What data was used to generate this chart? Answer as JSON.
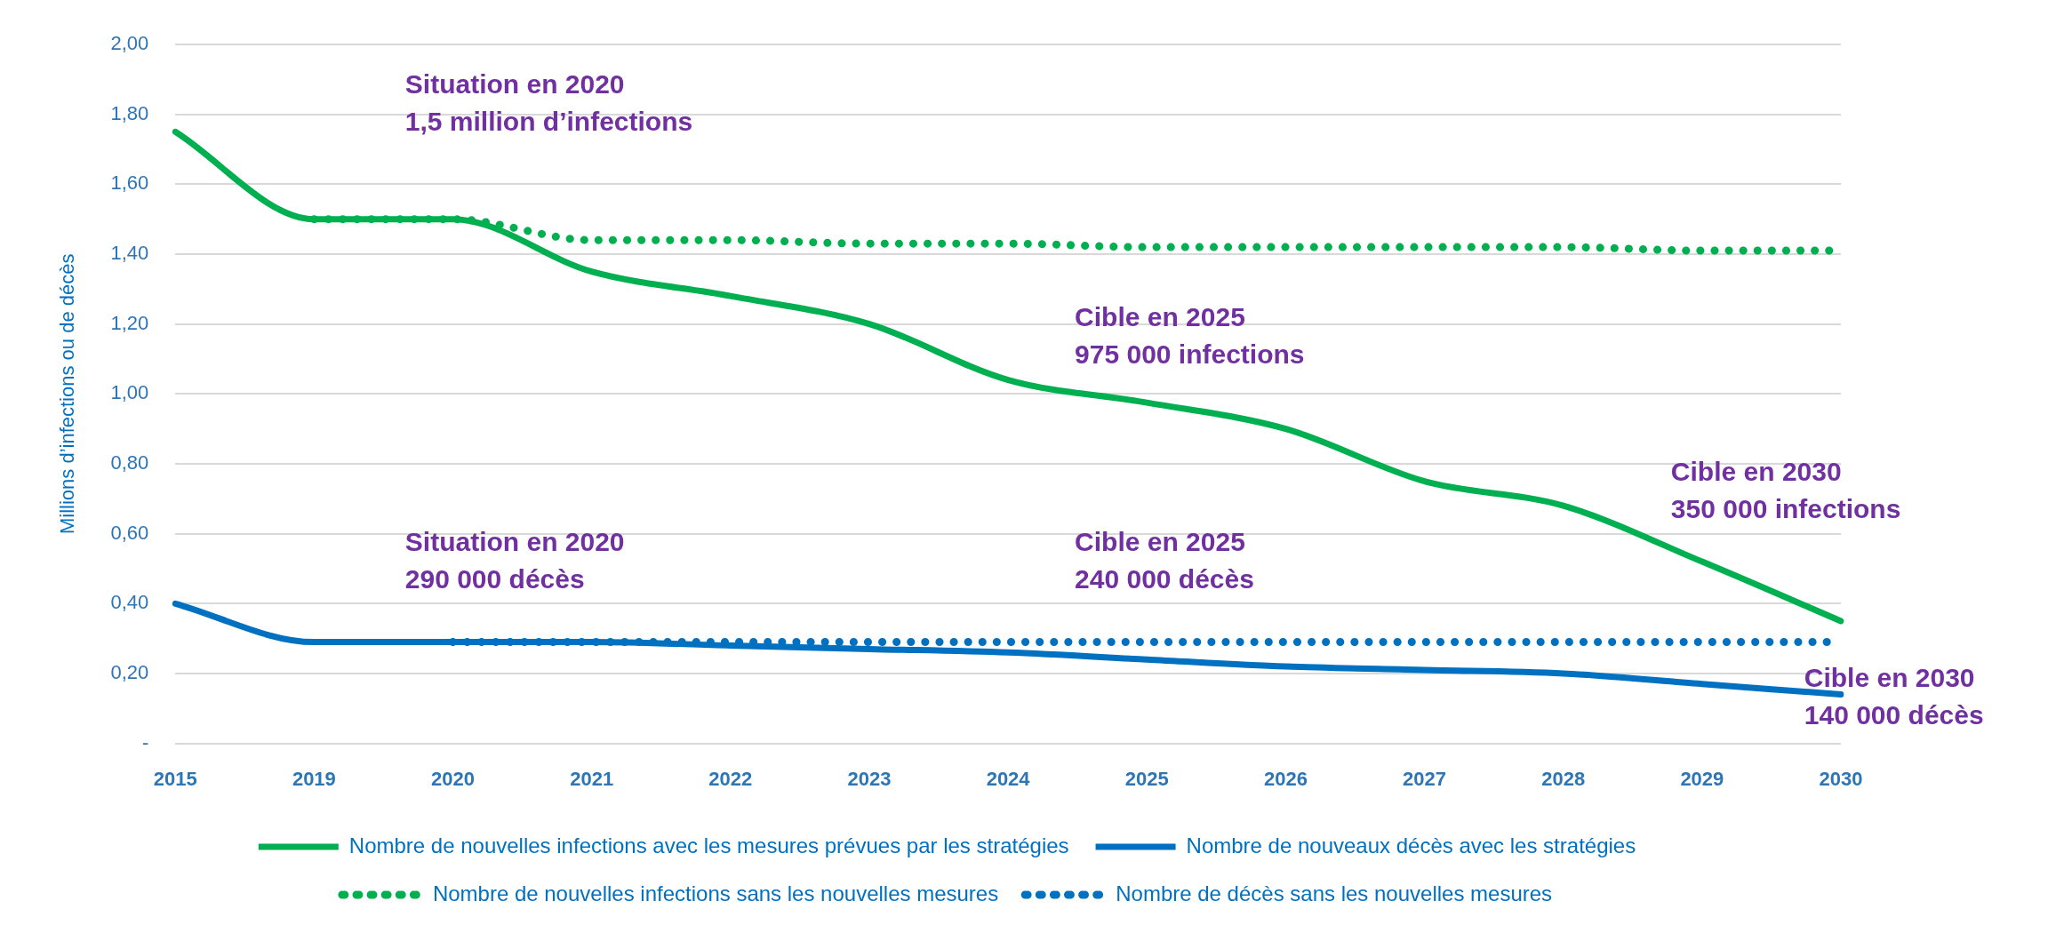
{
  "chart_data": {
    "type": "line",
    "ylabel": "Millions d’infections ou de décès",
    "categories": [
      "2015",
      "2019",
      "2020",
      "2021",
      "2022",
      "2023",
      "2024",
      "2025",
      "2026",
      "2027",
      "2028",
      "2029",
      "2030"
    ],
    "series": [
      {
        "name": "Nombre de nouvelles infections avec les mesures prévues par les stratégies",
        "color": "#00b050",
        "line_style": "solid",
        "values": [
          1.75,
          1.5,
          1.5,
          1.35,
          1.28,
          1.2,
          1.04,
          0.975,
          0.9,
          0.75,
          0.68,
          0.52,
          0.35
        ]
      },
      {
        "name": "Nombre de nouveaux décès avec les stratégies",
        "color": "#0070c0",
        "line_style": "solid",
        "values": [
          0.4,
          0.29,
          0.29,
          0.29,
          0.28,
          0.27,
          0.26,
          0.24,
          0.22,
          0.21,
          0.2,
          0.17,
          0.14
        ]
      },
      {
        "name": "Nombre de nouvelles infections sans les nouvelles mesures",
        "color": "#00b050",
        "line_style": "dotted",
        "values": [
          null,
          1.5,
          1.5,
          1.44,
          1.44,
          1.43,
          1.43,
          1.42,
          1.42,
          1.42,
          1.42,
          1.41,
          1.41
        ]
      },
      {
        "name": "Nombre de décès sans les nouvelles mesures",
        "color": "#0070c0",
        "line_style": "dotted",
        "values": [
          null,
          null,
          0.29,
          0.29,
          0.29,
          0.29,
          0.29,
          0.29,
          0.29,
          0.29,
          0.29,
          0.29,
          0.29
        ]
      }
    ],
    "ylim": [
      0,
      2
    ],
    "yticks": [
      {
        "value": 0,
        "label": "-"
      },
      {
        "value": 0.2,
        "label": "0,20"
      },
      {
        "value": 0.4,
        "label": "0,40"
      },
      {
        "value": 0.6,
        "label": "0,60"
      },
      {
        "value": 0.8,
        "label": "0,80"
      },
      {
        "value": 1,
        "label": "1,00"
      },
      {
        "value": 1.2,
        "label": "1,20"
      },
      {
        "value": 1.4,
        "label": "1,40"
      },
      {
        "value": 1.6,
        "label": "1,60"
      },
      {
        "value": 1.8,
        "label": "1,80"
      },
      {
        "value": 2,
        "label": "2,00"
      }
    ],
    "grid": "y",
    "legend": "bottom",
    "marker": "none",
    "annotations": [
      "Situation en 2020\n1,5 million d’infections",
      "Cible en 2025\n975 000 infections",
      "Cible en 2030\n350 000 infections",
      "Situation en 2020\n290 000 décès",
      "Cible en 2025\n240 000 décès",
      "Cible en 2030\n140 000 décès"
    ]
  }
}
